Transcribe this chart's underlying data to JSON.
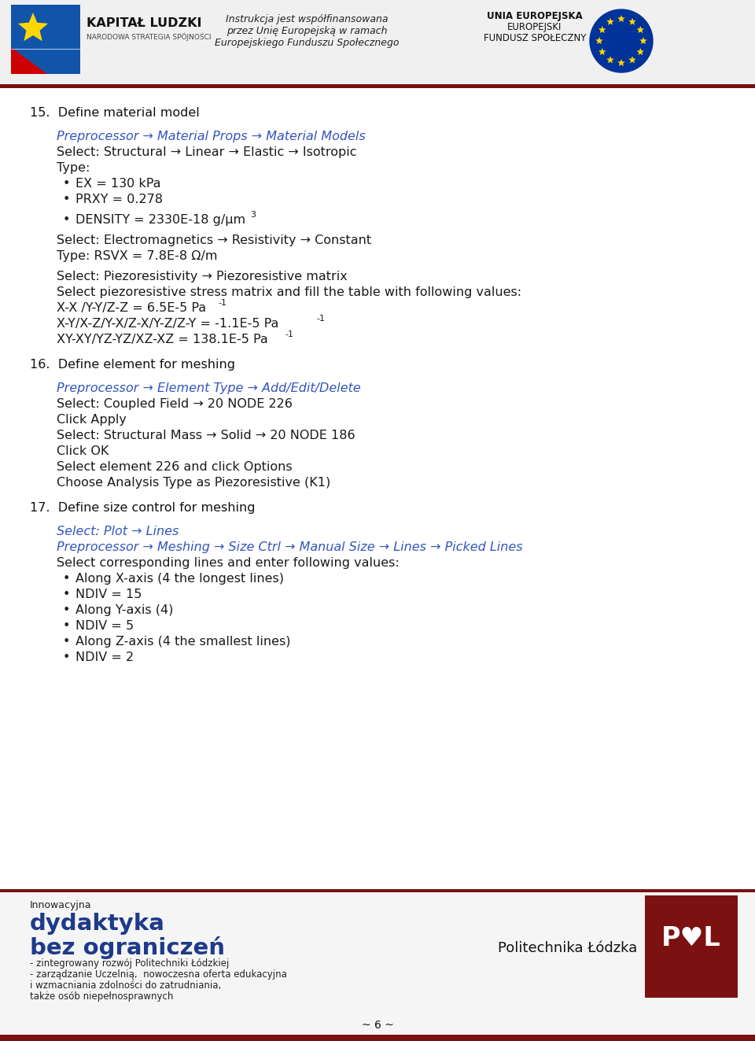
{
  "bg_color": "#ffffff",
  "dark_red": "#7B1111",
  "italic_blue": "#3355BB",
  "text_color": "#1a1a1a",
  "page_number": "~ 6 ~",
  "section15_heading": "15.  Define material model",
  "section15_italic_line": "Preprocessor → Material Props → Material Models",
  "section15_line1": "Select: Structural → Linear → Elastic → Isotropic",
  "section15_line2": "Type:",
  "section15_bullet1": "EX = 130 kPa",
  "section15_bullet2": "PRXY = 0.278",
  "section15_bullet3_a": "DENSITY = 2330E-18 g/μm",
  "section15_bullet3_b": "3",
  "section15_line3": "Select: Electromagnetics → Resistivity → Constant",
  "section15_line4": "Type: RSVX = 7.8E-8 Ω/m",
  "section15_line5": "Select: Piezoresistivity → Piezoresistive matrix",
  "section15_line6": "Select piezoresistive stress matrix and fill the table with following values:",
  "section15_line7a": "X-X /Y-Y/Z-Z = 6.5E-5 Pa",
  "section15_line7b": "-1",
  "section15_line8a": "X-Y/X-Z/Y-X/Z-X/Y-Z/Z-Y = -1.1E-5 Pa",
  "section15_line8b": "-1",
  "section15_line9a": "XY-XY/YZ-YZ/XZ-XZ = 138.1E-5 Pa",
  "section15_line9b": "-1",
  "section16_heading": "16.  Define element for meshing",
  "section16_italic_line": "Preprocessor → Element Type → Add/Edit/Delete",
  "section16_line1": "Select: Coupled Field → 20 NODE 226",
  "section16_line2": "Click Apply",
  "section16_line3": "Select: Structural Mass → Solid → 20 NODE 186",
  "section16_line4": "Click OK",
  "section16_line5": "Select element 226 and click Options",
  "section16_line6": "Choose Analysis Type as Piezoresistive (K1)",
  "section17_heading": "17.  Define size control for meshing",
  "section17_italic_line1": "Select: Plot → Lines",
  "section17_italic_line2": "Preprocessor → Meshing → Size Ctrl → Manual Size → Lines → Picked Lines",
  "section17_line1": "Select corresponding lines and enter following values:",
  "section17_bullet1": "Along X-axis (4 the longest lines)",
  "section17_bullet2": "NDIV = 15",
  "section17_bullet3": "Along Y-axis (4)",
  "section17_bullet4": "NDIV = 5",
  "section17_bullet5": "Along Z-axis (4 the smallest lines)",
  "section17_bullet6": "NDIV = 2",
  "footer_innowacyjna": "Innowacyjna",
  "footer_bold_line1": "dydaktyka",
  "footer_bold_line2": "bez ograniczeń",
  "footer_small1": "- zintegrowany rozwój Politechniki Łódzkiej",
  "footer_small2": "- zarządzanie Uczelnią,  nowoczesna oferta edukacyjna",
  "footer_small3": "i wzmacniania zdolności do zatrudniania,",
  "footer_small4": "także osób niepełnosprawnych",
  "footer_politechnika": "Politechnika Łódzka",
  "header_center_line1": "Instrukcja jest współfinansowana",
  "header_center_line2": "przez Unię Europejską w ramach",
  "header_center_line3": "Europejskiego Funduszu Społecznego",
  "header_right_line1": "UNIA EUROPEJSKA",
  "header_right_line2": "EUROPEJSKI",
  "header_right_line3": "FUNDUSZ SPOŁECZNY",
  "header_left_bold": "KAPITAŁ LUDZKI",
  "header_left_small": "NARODOWA STRATEGIA SPÓJNOŚCI"
}
